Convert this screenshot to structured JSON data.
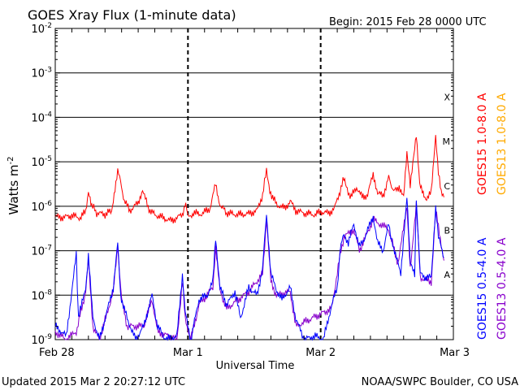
{
  "title": "GOES Xray Flux (1-minute data)",
  "begin_label": "Begin:  2015 Feb 28 0000 UTC",
  "updated_label": "Updated 2015 Mar  2 20:27:12 UTC",
  "credit_label": "NOAA/SWPC Boulder, CO USA",
  "chart_data": {
    "type": "line",
    "title": "GOES Xray Flux (1-minute data)",
    "xlabel": "Universal Time",
    "ylabel": "Watts m",
    "ylabel_superscript": "-2",
    "y_scale": "log",
    "ylim": [
      1e-09,
      0.01
    ],
    "xlim": [
      "2015-02-28 00:00",
      "2015-03-03 00:00"
    ],
    "x_ticks": [
      {
        "label": "Feb 28",
        "time": "2015-02-28 00:00"
      },
      {
        "label": "Mar 1",
        "time": "2015-03-01 00:00"
      },
      {
        "label": "Mar 2",
        "time": "2015-03-02 00:00"
      },
      {
        "label": "Mar 3",
        "time": "2015-03-03 00:00"
      }
    ],
    "y_ticks": [
      {
        "base": "10",
        "exp": "-9",
        "value": 1e-09
      },
      {
        "base": "10",
        "exp": "-8",
        "value": 1e-08
      },
      {
        "base": "10",
        "exp": "-7",
        "value": 1e-07
      },
      {
        "base": "10",
        "exp": "-6",
        "value": 1e-06
      },
      {
        "base": "10",
        "exp": "-5",
        "value": 1e-05
      },
      {
        "base": "10",
        "exp": "-4",
        "value": 0.0001
      },
      {
        "base": "10",
        "exp": "-3",
        "value": 0.001
      },
      {
        "base": "10",
        "exp": "-2",
        "value": 0.01
      }
    ],
    "flare_classes": [
      {
        "label": "A",
        "value": 3e-08
      },
      {
        "label": "B",
        "value": 3e-07
      },
      {
        "label": "C",
        "value": 3e-06
      },
      {
        "label": "M",
        "value": 3e-05
      },
      {
        "label": "X",
        "value": 0.0003
      }
    ],
    "grid": true,
    "series": [
      {
        "name": "GOES15 1.0-8.0 A",
        "color": "#ff0000",
        "points": [
          [
            0,
            5.8e-07
          ],
          [
            1.5,
            5.6e-07
          ],
          [
            3,
            6.2e-07
          ],
          [
            4.5,
            5.5e-07
          ],
          [
            5.5,
            7.5e-07
          ],
          [
            6,
            2.3e-06
          ],
          [
            6.6,
            1.1e-06
          ],
          [
            7.5,
            7e-07
          ],
          [
            9,
            6.6e-07
          ],
          [
            10.2,
            8e-07
          ],
          [
            10.8,
            2.6e-06
          ],
          [
            11.3,
            6.5e-06
          ],
          [
            11.8,
            3.5e-06
          ],
          [
            12.5,
            1.3e-06
          ],
          [
            13.5,
            8e-07
          ],
          [
            15,
            1.2e-06
          ],
          [
            15.8,
            2.4e-06
          ],
          [
            16.8,
            9e-07
          ],
          [
            18,
            6.5e-07
          ],
          [
            19.5,
            5.5e-07
          ],
          [
            21,
            4.7e-07
          ],
          [
            22,
            5.5e-07
          ],
          [
            23,
            6.5e-07
          ],
          [
            23.6,
            1.3e-06
          ],
          [
            24,
            5.6e-07
          ],
          [
            25,
            7e-07
          ],
          [
            26.5,
            6.7e-07
          ],
          [
            28,
            9e-07
          ],
          [
            29,
            3.2e-06
          ],
          [
            29.6,
            1.2e-06
          ],
          [
            31,
            7e-07
          ],
          [
            33,
            6.5e-07
          ],
          [
            35,
            6.8e-07
          ],
          [
            36.5,
            8e-07
          ],
          [
            37.5,
            1.8e-06
          ],
          [
            38.2,
            6.5e-06
          ],
          [
            38.8,
            2.2e-06
          ],
          [
            40,
            1.1e-06
          ],
          [
            41.5,
            9e-07
          ],
          [
            42.5,
            1.3e-06
          ],
          [
            43.5,
            8e-07
          ],
          [
            45,
            7e-07
          ],
          [
            47,
            6.5e-07
          ],
          [
            48,
            7.5e-07
          ],
          [
            49.5,
            7e-07
          ],
          [
            50.5,
            9e-07
          ],
          [
            51.5,
            2.2e-06
          ],
          [
            52.2,
            4.2e-06
          ],
          [
            52.8,
            2.3e-06
          ],
          [
            53.5,
            1.6e-06
          ],
          [
            54.5,
            2.7e-06
          ],
          [
            55.5,
            1.6e-06
          ],
          [
            56.5,
            1.8e-06
          ],
          [
            57.5,
            5.5e-06
          ],
          [
            58.3,
            2e-06
          ],
          [
            59.3,
            1.7e-06
          ],
          [
            60.3,
            4.5e-06
          ],
          [
            61.2,
            2.1e-06
          ],
          [
            62.2,
            2.8e-06
          ],
          [
            63,
            1.6e-06
          ],
          [
            63.6,
            1.5e-05
          ],
          [
            64.2,
            2.8e-06
          ],
          [
            65.3,
            3.8e-05
          ],
          [
            65.9,
            3e-06
          ],
          [
            67,
            1.5e-06
          ],
          [
            68,
            2e-06
          ],
          [
            68.8,
            4e-05
          ],
          [
            69.3,
            6e-06
          ],
          [
            69.8,
            1.9e-06
          ],
          [
            70.3,
            1.6e-06
          ]
        ]
      },
      {
        "name": "GOES15 0.5-4.0 A",
        "color": "#0000ff",
        "points": [
          [
            0,
            2e-09
          ],
          [
            2,
            1.2e-09
          ],
          [
            3.8,
            8e-08
          ],
          [
            4.2,
            3e-09
          ],
          [
            5.5,
            1.5e-08
          ],
          [
            6,
            8e-08
          ],
          [
            6.8,
            3e-09
          ],
          [
            8,
            1e-09
          ],
          [
            9.5,
            5e-09
          ],
          [
            10.5,
            1.5e-08
          ],
          [
            11.3,
            1.5e-07
          ],
          [
            11.8,
            1e-08
          ],
          [
            13,
            3e-09
          ],
          [
            14.5,
            1e-09
          ],
          [
            16,
            2e-09
          ],
          [
            17.5,
            1e-08
          ],
          [
            18.5,
            2e-09
          ],
          [
            20,
            1e-09
          ],
          [
            22,
            1.2e-09
          ],
          [
            23,
            3e-08
          ],
          [
            23.5,
            4e-09
          ],
          [
            24.5,
            1e-09
          ],
          [
            26,
            8e-09
          ],
          [
            27.5,
            1e-08
          ],
          [
            28.5,
            2e-08
          ],
          [
            29,
            2e-07
          ],
          [
            29.8,
            1.5e-08
          ],
          [
            31,
            6e-09
          ],
          [
            32.5,
            1.2e-08
          ],
          [
            33.5,
            3e-09
          ],
          [
            35,
            1.5e-08
          ],
          [
            36.5,
            1e-08
          ],
          [
            37.5,
            4e-08
          ],
          [
            38.2,
            7e-07
          ],
          [
            39,
            3e-08
          ],
          [
            40,
            1.3e-08
          ],
          [
            41,
            8e-09
          ],
          [
            42.5,
            1.5e-08
          ],
          [
            43.5,
            3e-09
          ],
          [
            45,
            1e-09
          ],
          [
            47,
            1.2e-09
          ],
          [
            48.5,
            1e-09
          ],
          [
            50,
            6e-09
          ],
          [
            51,
            1.5e-08
          ],
          [
            51.5,
            1e-07
          ],
          [
            52.2,
            2.5e-07
          ],
          [
            53,
            1.5e-07
          ],
          [
            54,
            4e-07
          ],
          [
            55,
            1.2e-07
          ],
          [
            56,
            2e-07
          ],
          [
            57.5,
            6e-07
          ],
          [
            58.3,
            1.5e-07
          ],
          [
            59.3,
            1e-07
          ],
          [
            60.3,
            4e-07
          ],
          [
            61.2,
            1e-07
          ],
          [
            62,
            6e-08
          ],
          [
            62.5,
            3e-08
          ],
          [
            63.6,
            1.5e-06
          ],
          [
            64.2,
            5e-08
          ],
          [
            65,
            3e-08
          ],
          [
            65.3,
            1.5e-06
          ],
          [
            66,
            3e-08
          ],
          [
            67,
            2.5e-08
          ],
          [
            68,
            2.5e-08
          ],
          [
            68.8,
            1e-06
          ],
          [
            69.3,
            2e-07
          ],
          [
            70.3,
            7e-08
          ]
        ]
      },
      {
        "name": "GOES13 1.0-8.0 A",
        "color": "#ffaa00",
        "points": []
      },
      {
        "name": "GOES13 0.5-4.0 A",
        "color": "#8800cc",
        "points": [
          [
            0,
            1.5e-09
          ],
          [
            2,
            1e-09
          ],
          [
            3.8,
            1.5e-09
          ],
          [
            5.5,
            1.2e-08
          ],
          [
            6,
            6e-08
          ],
          [
            6.8,
            2e-09
          ],
          [
            8,
            1e-09
          ],
          [
            10.5,
            1.2e-08
          ],
          [
            11.3,
            1.2e-07
          ],
          [
            12,
            8e-09
          ],
          [
            13,
            2e-09
          ],
          [
            16,
            2e-09
          ],
          [
            17.5,
            8e-09
          ],
          [
            18.5,
            1.5e-09
          ],
          [
            22,
            1e-09
          ],
          [
            23,
            2e-08
          ],
          [
            23.5,
            3e-09
          ],
          [
            24.5,
            1e-09
          ],
          [
            26,
            6e-09
          ],
          [
            28.5,
            1.5e-08
          ],
          [
            29,
            1.2e-07
          ],
          [
            29.8,
            1.2e-08
          ],
          [
            31,
            5e-09
          ],
          [
            35,
            1.2e-08
          ],
          [
            37.5,
            3e-08
          ],
          [
            38.2,
            5e-07
          ],
          [
            39,
            2e-08
          ],
          [
            40,
            1e-08
          ],
          [
            42.5,
            1.2e-08
          ],
          [
            43.5,
            2e-09
          ],
          [
            50,
            5e-09
          ],
          [
            51.5,
            8e-08
          ],
          [
            52.2,
            2e-07
          ],
          [
            54,
            3e-07
          ],
          [
            55,
            1e-07
          ],
          [
            57.5,
            5e-07
          ],
          [
            60.3,
            3e-07
          ],
          [
            62,
            5e-08
          ],
          [
            63.6,
            1e-06
          ],
          [
            64.2,
            4e-08
          ],
          [
            65.3,
            1.2e-06
          ],
          [
            66,
            2.5e-08
          ],
          [
            68,
            2e-08
          ],
          [
            68.8,
            8e-07
          ],
          [
            70.3,
            6e-08
          ]
        ]
      }
    ]
  }
}
